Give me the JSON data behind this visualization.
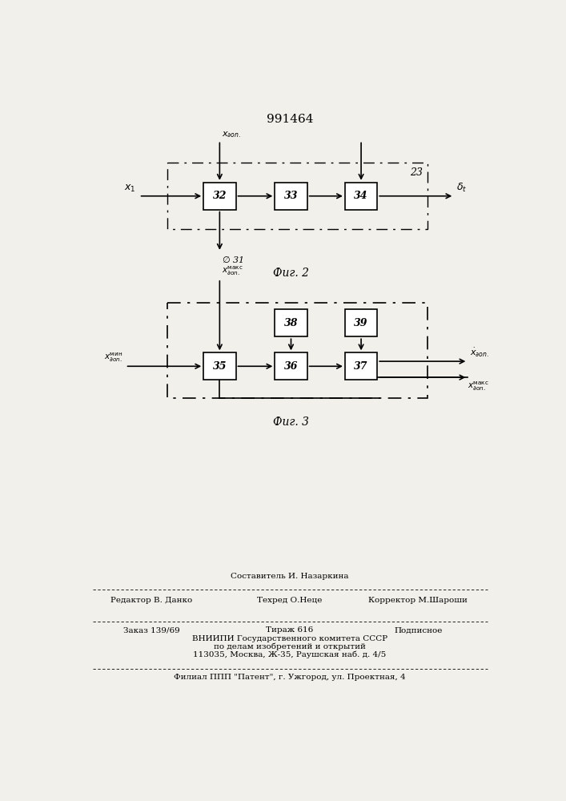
{
  "title": "991464",
  "bg_color": "#f2f0eb",
  "fig2_label": "Фиг. 2",
  "fig3_label": "Фиг. 3",
  "footer_line1_above": "Составитель И. Назаркина",
  "footer_editor": "Редактор В. Данко",
  "footer_tech": "Техред О.Неце",
  "footer_corrector": "Корректор М.Шароши",
  "footer_order": "Заказ 139/69",
  "footer_tirazh": "Тираж 616",
  "footer_podpisnoe": "Подписное",
  "footer_vniipи": "ВНИИПИ Государственного комитета СССР",
  "footer_po_delam": "по делам изобретений и открытий",
  "footer_address": "113035, Москва, Ж-35, Раушская наб. д. 4/5",
  "footer_filial": "Филиал ППП \"Патент\", г. Ужгород, ул. Проектная, 4"
}
